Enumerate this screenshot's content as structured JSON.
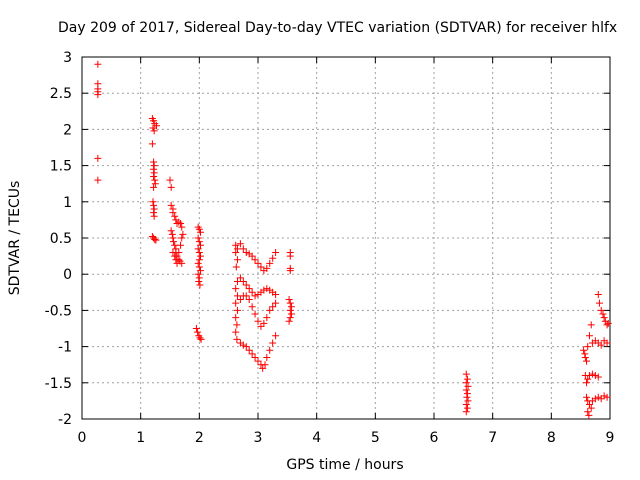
{
  "chart_data": {
    "type": "scatter",
    "title": "Day 209 of 2017, Sidereal Day-to-day VTEC variation (SDTVAR) for receiver hlfx",
    "xlabel": "GPS time / hours",
    "ylabel": "SDTVAR / TECUs",
    "xlim": [
      0,
      9
    ],
    "ylim": [
      -2,
      3
    ],
    "xticks": [
      "0",
      "1",
      "2",
      "3",
      "4",
      "5",
      "6",
      "7",
      "8",
      "9"
    ],
    "yticks": [
      "-2",
      "-1.5",
      "-1",
      "-0.5",
      "0",
      "0.5",
      "1",
      "1.5",
      "2",
      "2.5",
      "3"
    ],
    "grid": true,
    "marker": "+",
    "color": "#ff0000",
    "series": [
      {
        "name": "SDTVAR",
        "points": [
          [
            0.27,
            2.9
          ],
          [
            0.27,
            2.63
          ],
          [
            0.27,
            2.56
          ],
          [
            0.27,
            2.52
          ],
          [
            0.27,
            2.48
          ],
          [
            0.27,
            1.6
          ],
          [
            0.27,
            1.3
          ],
          [
            1.2,
            2.15
          ],
          [
            1.22,
            2.12
          ],
          [
            1.24,
            2.08
          ],
          [
            1.27,
            2.05
          ],
          [
            1.21,
            2.02
          ],
          [
            1.23,
            1.98
          ],
          [
            1.2,
            1.8
          ],
          [
            1.22,
            1.55
          ],
          [
            1.23,
            1.5
          ],
          [
            1.22,
            1.45
          ],
          [
            1.23,
            1.4
          ],
          [
            1.22,
            1.35
          ],
          [
            1.24,
            1.3
          ],
          [
            1.25,
            1.25
          ],
          [
            1.22,
            1.2
          ],
          [
            1.21,
            1.0
          ],
          [
            1.22,
            0.95
          ],
          [
            1.23,
            0.9
          ],
          [
            1.22,
            0.85
          ],
          [
            1.23,
            0.8
          ],
          [
            1.2,
            0.52
          ],
          [
            1.22,
            0.5
          ],
          [
            1.24,
            0.48
          ],
          [
            1.26,
            0.47
          ],
          [
            1.5,
            1.3
          ],
          [
            1.52,
            1.2
          ],
          [
            1.52,
            0.95
          ],
          [
            1.55,
            0.9
          ],
          [
            1.55,
            0.85
          ],
          [
            1.58,
            0.8
          ],
          [
            1.6,
            0.75
          ],
          [
            1.62,
            0.7
          ],
          [
            1.65,
            0.72
          ],
          [
            1.68,
            0.7
          ],
          [
            1.7,
            0.65
          ],
          [
            1.52,
            0.6
          ],
          [
            1.54,
            0.55
          ],
          [
            1.55,
            0.5
          ],
          [
            1.56,
            0.45
          ],
          [
            1.58,
            0.4
          ],
          [
            1.6,
            0.35
          ],
          [
            1.6,
            0.3
          ],
          [
            1.62,
            0.25
          ],
          [
            1.65,
            0.2
          ],
          [
            1.67,
            0.18
          ],
          [
            1.7,
            0.15
          ],
          [
            1.55,
            0.3
          ],
          [
            1.58,
            0.25
          ],
          [
            1.6,
            0.2
          ],
          [
            1.62,
            0.15
          ],
          [
            1.65,
            0.3
          ],
          [
            1.68,
            0.4
          ],
          [
            1.7,
            0.5
          ],
          [
            1.72,
            0.55
          ],
          [
            1.98,
            0.65
          ],
          [
            2.0,
            0.62
          ],
          [
            2.02,
            0.58
          ],
          [
            1.98,
            0.5
          ],
          [
            2.0,
            0.45
          ],
          [
            2.02,
            0.4
          ],
          [
            1.98,
            0.35
          ],
          [
            2.0,
            0.3
          ],
          [
            2.02,
            0.25
          ],
          [
            2.0,
            0.2
          ],
          [
            1.98,
            0.15
          ],
          [
            2.0,
            0.1
          ],
          [
            2.02,
            0.05
          ],
          [
            1.98,
            0.0
          ],
          [
            2.0,
            -0.05
          ],
          [
            1.99,
            -0.1
          ],
          [
            2.01,
            -0.15
          ],
          [
            1.95,
            -0.75
          ],
          [
            1.97,
            -0.8
          ],
          [
            1.99,
            -0.85
          ],
          [
            2.01,
            -0.88
          ],
          [
            2.03,
            -0.9
          ],
          [
            2.62,
            0.4
          ],
          [
            2.65,
            0.35
          ],
          [
            2.62,
            0.3
          ],
          [
            2.65,
            0.2
          ],
          [
            2.63,
            0.1
          ],
          [
            2.65,
            -0.1
          ],
          [
            2.62,
            -0.2
          ],
          [
            2.65,
            -0.3
          ],
          [
            2.62,
            -0.4
          ],
          [
            2.65,
            -0.5
          ],
          [
            2.62,
            -0.6
          ],
          [
            2.64,
            -0.7
          ],
          [
            2.62,
            -0.8
          ],
          [
            2.64,
            -0.9
          ],
          [
            2.7,
            0.42
          ],
          [
            2.75,
            0.35
          ],
          [
            2.8,
            0.3
          ],
          [
            2.85,
            0.28
          ],
          [
            2.9,
            0.25
          ],
          [
            2.95,
            0.2
          ],
          [
            3.0,
            0.15
          ],
          [
            3.05,
            0.1
          ],
          [
            3.1,
            0.05
          ],
          [
            3.15,
            0.08
          ],
          [
            3.2,
            0.15
          ],
          [
            3.25,
            0.22
          ],
          [
            3.3,
            0.3
          ],
          [
            2.7,
            -0.05
          ],
          [
            2.75,
            -0.1
          ],
          [
            2.8,
            -0.15
          ],
          [
            2.85,
            -0.2
          ],
          [
            2.9,
            -0.25
          ],
          [
            2.95,
            -0.3
          ],
          [
            3.0,
            -0.28
          ],
          [
            3.05,
            -0.25
          ],
          [
            3.1,
            -0.22
          ],
          [
            3.15,
            -0.2
          ],
          [
            3.2,
            -0.22
          ],
          [
            3.25,
            -0.25
          ],
          [
            3.3,
            -0.28
          ],
          [
            2.7,
            -0.35
          ],
          [
            2.75,
            -0.3
          ],
          [
            2.8,
            -0.3
          ],
          [
            2.85,
            -0.35
          ],
          [
            2.9,
            -0.45
          ],
          [
            2.95,
            -0.55
          ],
          [
            3.0,
            -0.65
          ],
          [
            3.05,
            -0.72
          ],
          [
            3.1,
            -0.68
          ],
          [
            3.15,
            -0.6
          ],
          [
            3.2,
            -0.5
          ],
          [
            3.25,
            -0.45
          ],
          [
            3.3,
            -0.4
          ],
          [
            2.7,
            -0.95
          ],
          [
            2.75,
            -0.98
          ],
          [
            2.8,
            -1.0
          ],
          [
            2.85,
            -1.05
          ],
          [
            2.9,
            -1.1
          ],
          [
            2.95,
            -1.15
          ],
          [
            3.0,
            -1.2
          ],
          [
            3.05,
            -1.25
          ],
          [
            3.08,
            -1.3
          ],
          [
            3.12,
            -1.25
          ],
          [
            3.15,
            -1.15
          ],
          [
            3.2,
            -1.05
          ],
          [
            3.25,
            -0.95
          ],
          [
            3.3,
            -0.85
          ],
          [
            3.55,
            0.3
          ],
          [
            3.55,
            0.25
          ],
          [
            3.55,
            0.08
          ],
          [
            3.55,
            0.05
          ],
          [
            3.53,
            -0.35
          ],
          [
            3.55,
            -0.4
          ],
          [
            3.57,
            -0.45
          ],
          [
            3.55,
            -0.5
          ],
          [
            3.57,
            -0.55
          ],
          [
            3.55,
            -0.6
          ],
          [
            3.53,
            -0.65
          ],
          [
            6.55,
            -1.38
          ],
          [
            6.57,
            -1.45
          ],
          [
            6.55,
            -1.5
          ],
          [
            6.58,
            -1.55
          ],
          [
            6.55,
            -1.6
          ],
          [
            6.57,
            -1.65
          ],
          [
            6.56,
            -1.7
          ],
          [
            6.58,
            -1.75
          ],
          [
            6.55,
            -1.8
          ],
          [
            6.57,
            -1.85
          ],
          [
            6.55,
            -1.9
          ],
          [
            8.55,
            -1.05
          ],
          [
            8.57,
            -1.1
          ],
          [
            8.58,
            -1.15
          ],
          [
            8.6,
            -1.2
          ],
          [
            8.62,
            -1.0
          ],
          [
            8.65,
            -0.85
          ],
          [
            8.68,
            -0.7
          ],
          [
            8.7,
            -0.95
          ],
          [
            8.75,
            -0.92
          ],
          [
            8.8,
            -0.95
          ],
          [
            8.85,
            -0.98
          ],
          [
            8.9,
            -0.92
          ],
          [
            8.95,
            -0.95
          ],
          [
            8.58,
            -1.4
          ],
          [
            8.6,
            -1.5
          ],
          [
            8.62,
            -1.45
          ],
          [
            8.65,
            -1.4
          ],
          [
            8.7,
            -1.38
          ],
          [
            8.75,
            -1.4
          ],
          [
            8.8,
            -1.42
          ],
          [
            8.6,
            -1.7
          ],
          [
            8.62,
            -1.75
          ],
          [
            8.65,
            -1.8
          ],
          [
            8.68,
            -1.85
          ],
          [
            8.7,
            -1.75
          ],
          [
            8.75,
            -1.72
          ],
          [
            8.8,
            -1.7
          ],
          [
            8.85,
            -1.72
          ],
          [
            8.9,
            -1.68
          ],
          [
            8.95,
            -1.7
          ],
          [
            8.62,
            -1.9
          ],
          [
            8.64,
            -1.95
          ],
          [
            8.8,
            -0.28
          ],
          [
            8.82,
            -0.4
          ],
          [
            8.85,
            -0.5
          ],
          [
            8.88,
            -0.55
          ],
          [
            8.9,
            -0.6
          ],
          [
            8.92,
            -0.65
          ],
          [
            8.95,
            -0.7
          ],
          [
            8.97,
            -0.68
          ]
        ]
      }
    ]
  }
}
